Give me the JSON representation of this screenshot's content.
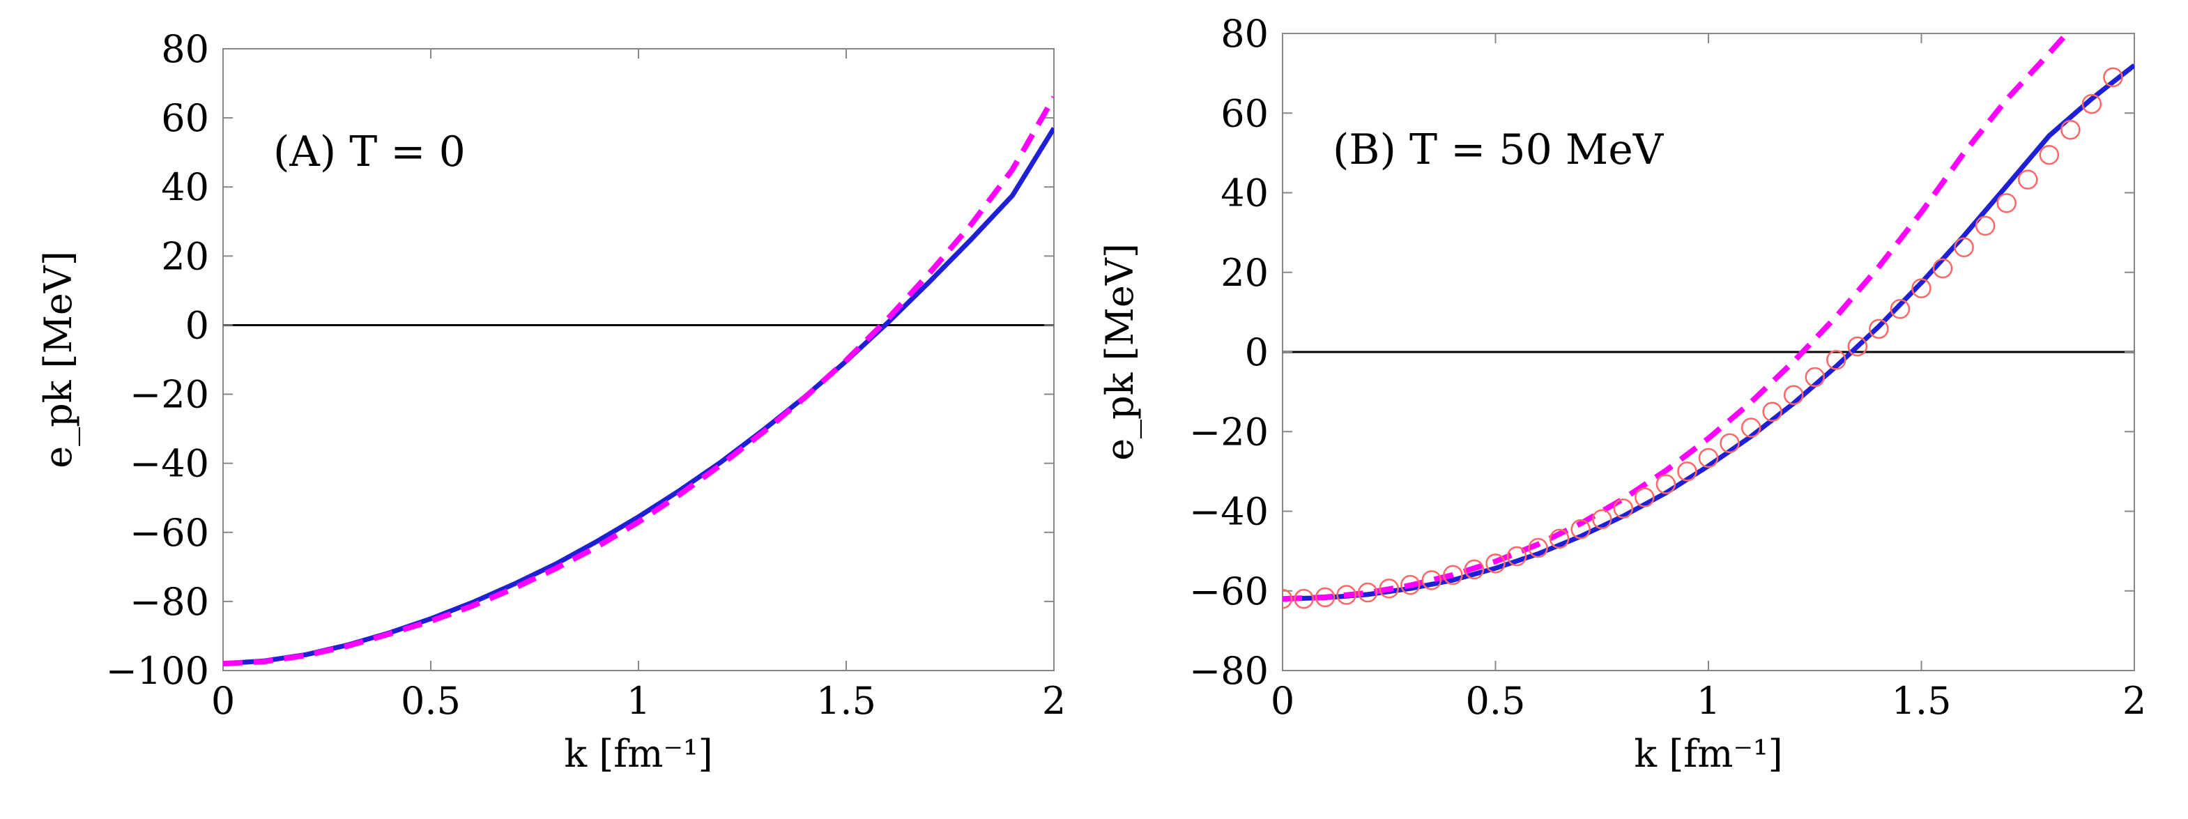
{
  "chart_data": [
    {
      "type": "line",
      "annotation": "(A)  T = 0",
      "xlabel": "k [fm⁻¹]",
      "ylabel": "e_pk [MeV]",
      "xlim": [
        0,
        2
      ],
      "ylim": [
        -100,
        80
      ],
      "xticks": [
        0,
        0.5,
        1,
        1.5,
        2
      ],
      "xtick_labels": [
        "0",
        "0.5",
        "1",
        "1.5",
        "2"
      ],
      "yticks": [
        -100,
        -80,
        -60,
        -40,
        -20,
        0,
        20,
        40,
        60,
        80
      ],
      "ytick_labels": [
        "−100",
        "−80",
        "−60",
        "−40",
        "−20",
        "0",
        "20",
        "40",
        "60",
        "80"
      ],
      "reference_line_y": 0,
      "grid": false,
      "series": [
        {
          "style": "solid",
          "color": "#1f1fd6",
          "x": [
            0,
            0.1,
            0.2,
            0.3,
            0.4,
            0.5,
            0.6,
            0.7,
            0.8,
            0.9,
            1.0,
            1.1,
            1.2,
            1.3,
            1.4,
            1.5,
            1.6,
            1.7,
            1.8,
            1.9,
            2.0
          ],
          "y": [
            -98,
            -97.2,
            -95.4,
            -92.6,
            -89.1,
            -85,
            -80.3,
            -75,
            -69.2,
            -62.6,
            -55.5,
            -47.8,
            -39.5,
            -30.4,
            -20.8,
            -10.4,
            0.7,
            12.5,
            24.7,
            37.5,
            57
          ]
        },
        {
          "style": "dashed",
          "color": "#ff00ff",
          "x": [
            0,
            0.1,
            0.2,
            0.3,
            0.4,
            0.5,
            0.6,
            0.7,
            0.8,
            0.9,
            1.0,
            1.1,
            1.2,
            1.3,
            1.4,
            1.5,
            1.6,
            1.7,
            1.8,
            1.9,
            2.0
          ],
          "y": [
            -98,
            -97.4,
            -95.6,
            -92.9,
            -89.4,
            -85.7,
            -81.3,
            -76.2,
            -70.5,
            -64.2,
            -57,
            -49,
            -40.3,
            -31,
            -21,
            -10.2,
            1.8,
            15,
            29,
            45,
            66
          ]
        }
      ]
    },
    {
      "type": "line",
      "annotation": "(B)  T = 50 MeV",
      "xlabel": "k [fm⁻¹]",
      "ylabel": "e_pk [MeV]",
      "xlim": [
        0,
        2
      ],
      "ylim": [
        -80,
        80
      ],
      "xticks": [
        0,
        0.5,
        1,
        1.5,
        2
      ],
      "xtick_labels": [
        "0",
        "0.5",
        "1",
        "1.5",
        "2"
      ],
      "yticks": [
        -80,
        -60,
        -40,
        -20,
        0,
        20,
        40,
        60,
        80
      ],
      "ytick_labels": [
        "−80",
        "−60",
        "−40",
        "−20",
        "0",
        "20",
        "40",
        "60",
        "80"
      ],
      "reference_line_y": 0,
      "grid": false,
      "series": [
        {
          "style": "solid",
          "color": "#1f1fd6",
          "x": [
            0,
            0.1,
            0.2,
            0.3,
            0.4,
            0.5,
            0.6,
            0.7,
            0.8,
            0.9,
            1.0,
            1.1,
            1.2,
            1.3,
            1.4,
            1.5,
            1.6,
            1.7,
            1.8,
            1.9,
            2.0
          ],
          "y": [
            -62,
            -61.7,
            -60.9,
            -59.4,
            -57.3,
            -54.3,
            -50.7,
            -46.3,
            -41.2,
            -35.4,
            -28.6,
            -21.2,
            -12.9,
            -3.6,
            6.4,
            17.4,
            29.2,
            41.7,
            54.3,
            63.6,
            72
          ]
        },
        {
          "style": "dashed",
          "color": "#ff00ff",
          "x": [
            0,
            0.1,
            0.2,
            0.3,
            0.4,
            0.5,
            0.6,
            0.7,
            0.8,
            0.9,
            1.0,
            1.1,
            1.2,
            1.3,
            1.4,
            1.5,
            1.6,
            1.7,
            1.8,
            1.85
          ],
          "y": [
            -62,
            -61.6,
            -60.5,
            -58.6,
            -56,
            -52.6,
            -48.3,
            -43.1,
            -36.9,
            -29.8,
            -21.7,
            -12.6,
            -2.4,
            8.9,
            21.4,
            35.1,
            50,
            63.4,
            75,
            81
          ]
        },
        {
          "style": "markers",
          "marker": "open-circle",
          "color": "#ff6666",
          "x": [
            0,
            0.05,
            0.1,
            0.15,
            0.2,
            0.25,
            0.3,
            0.35,
            0.4,
            0.45,
            0.5,
            0.55,
            0.6,
            0.65,
            0.7,
            0.75,
            0.8,
            0.85,
            0.9,
            0.95,
            1.0,
            1.05,
            1.1,
            1.15,
            1.2,
            1.25,
            1.3,
            1.35,
            1.4,
            1.45,
            1.5,
            1.55,
            1.6,
            1.65,
            1.7,
            1.75,
            1.8,
            1.85,
            1.9,
            1.95
          ],
          "y": [
            -62,
            -62,
            -61.6,
            -61,
            -60.4,
            -59.4,
            -58.5,
            -57.3,
            -56,
            -54.6,
            -53.1,
            -51.3,
            -49.2,
            -46.9,
            -44.5,
            -42,
            -39.3,
            -36.5,
            -33.2,
            -30,
            -26.6,
            -22.9,
            -19,
            -15,
            -10.8,
            -6.3,
            -2,
            1.4,
            5.8,
            10.8,
            16,
            21,
            26.3,
            31.7,
            37.4,
            43.3,
            49.5,
            55.8,
            62.3,
            69
          ]
        }
      ]
    }
  ]
}
